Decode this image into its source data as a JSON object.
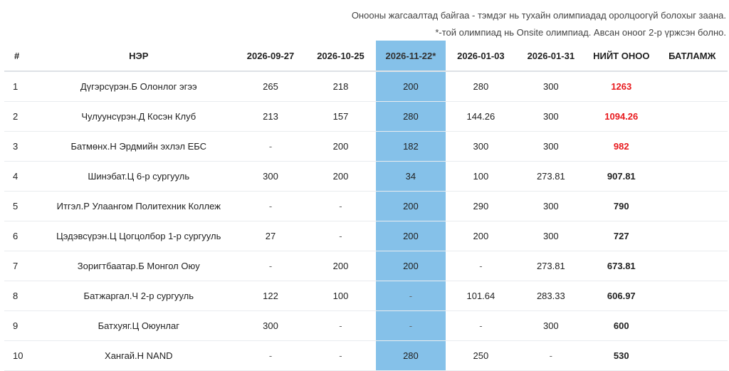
{
  "notes": {
    "line1": "Онооны жагсаалтад байгаа - тэмдэг нь тухайн олимпиадад оролцоогүй болохыг заана.",
    "line2": "*-той олимпиад нь Onsite олимпиад. Авсан оноог 2-р үржсэн болно."
  },
  "table": {
    "headers": {
      "num": "#",
      "name": "НЭР",
      "d1": "2026-09-27",
      "d2": "2026-10-25",
      "d3": "2026-11-22*",
      "d4": "2026-01-03",
      "d5": "2026-01-31",
      "total": "НИЙТ ОНОО",
      "cert": "БАТЛАМЖ"
    },
    "rows": [
      {
        "num": "1",
        "name": "Дүгэрсүрэн.Б Олонлог эгээ",
        "d1": "265",
        "d2": "218",
        "d3": "200",
        "d4": "280",
        "d5": "300",
        "total": "1263",
        "cert": ""
      },
      {
        "num": "2",
        "name": "Чулуунсүрэн.Д Косэн Клуб",
        "d1": "213",
        "d2": "157",
        "d3": "280",
        "d4": "144.26",
        "d5": "300",
        "total": "1094.26",
        "cert": ""
      },
      {
        "num": "3",
        "name": "Батмөнх.Н Эрдмийн эхлэл ЕБС",
        "d1": "-",
        "d2": "200",
        "d3": "182",
        "d4": "300",
        "d5": "300",
        "total": "982",
        "cert": ""
      },
      {
        "num": "4",
        "name": "Шинэбат.Ц 6-р сургууль",
        "d1": "300",
        "d2": "200",
        "d3": "34",
        "d4": "100",
        "d5": "273.81",
        "total": "907.81",
        "cert": ""
      },
      {
        "num": "5",
        "name": "Итгэл.Р Улаангом Политехник Коллеж",
        "d1": "-",
        "d2": "-",
        "d3": "200",
        "d4": "290",
        "d5": "300",
        "total": "790",
        "cert": ""
      },
      {
        "num": "6",
        "name": "Цэдэвсүрэн.Ц Цогцолбор 1-р сургууль",
        "d1": "27",
        "d2": "-",
        "d3": "200",
        "d4": "200",
        "d5": "300",
        "total": "727",
        "cert": ""
      },
      {
        "num": "7",
        "name": "Зоригтбаатар.Б Монгол Оюу",
        "d1": "-",
        "d2": "200",
        "d3": "200",
        "d4": "-",
        "d5": "273.81",
        "total": "673.81",
        "cert": ""
      },
      {
        "num": "8",
        "name": "Батжаргал.Ч 2-р сургууль",
        "d1": "122",
        "d2": "100",
        "d3": "-",
        "d4": "101.64",
        "d5": "283.33",
        "total": "606.97",
        "cert": ""
      },
      {
        "num": "9",
        "name": "Батхуяг.Ц Оюунлаг",
        "d1": "300",
        "d2": "-",
        "d3": "-",
        "d4": "-",
        "d5": "300",
        "total": "600",
        "cert": ""
      },
      {
        "num": "10",
        "name": "Хангай.Н NAND",
        "d1": "-",
        "d2": "-",
        "d3": "280",
        "d4": "250",
        "d5": "-",
        "total": "530",
        "cert": ""
      }
    ]
  },
  "colors": {
    "highlight_column": "#85c1e9",
    "top_total": "#e8191d"
  }
}
